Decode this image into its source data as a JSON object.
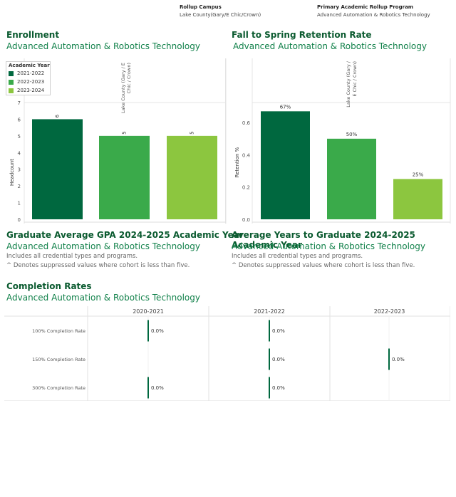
{
  "filters": {
    "campus_label": "Rollup Campus",
    "campus_value": "Lake County(Gary/E Chic/Crown)",
    "program_label": "Primary Academic Rollup Program",
    "program_value": "Advanced Automation & Robotics Technology"
  },
  "colors": {
    "y2021": "#00683f",
    "y2022": "#3aaa4a",
    "y2023": "#8cc63f",
    "title": "#0a5a2f",
    "subtitle": "#11814a"
  },
  "enrollment": {
    "title": "Enrollment",
    "subtitle": "Advanced Automation & Robotics Technology",
    "legend_title": "Academic Year",
    "legend_items": [
      "2021-2022",
      "2022-2023",
      "2023-2024"
    ],
    "campus_header": "Lake County (Gary / E Chic / Crown)"
  },
  "retention": {
    "title": "Fall to Spring Retention Rate",
    "subtitle": "Advanced Automation & Robotics Technology",
    "campus_header": "Lake County (Gary / E Chic / Crown)"
  },
  "gpa": {
    "title": "Graduate Average GPA 2024-2025 Academic Year",
    "subtitle": "Advanced Automation & Robotics Technology",
    "note1": "Includes all credential types and programs.",
    "note2": "^ Denotes suppressed values where cohort is less than five."
  },
  "years_grad": {
    "title": "Average Years to Graduate 2024-2025 Academic Year",
    "subtitle": "Advanced Automation & Robotics Technology",
    "note1": "Includes all credential types and programs.",
    "note2": "^ Denotes suppressed values where cohort is less than five."
  },
  "completion": {
    "title": "Completion Rates",
    "subtitle": "Advanced Automation & Robotics Technology"
  },
  "chart_data": [
    {
      "type": "bar",
      "title": "Enrollment",
      "ylabel": "Headcount",
      "categories": [
        "2021-2022",
        "2022-2023",
        "2023-2024"
      ],
      "values": [
        6,
        5,
        5
      ],
      "data_labels": [
        "6",
        "5",
        "5"
      ],
      "ylim": [
        0,
        7
      ],
      "yticks": [
        0,
        1,
        2,
        3,
        4,
        5,
        6,
        7
      ],
      "grid": false
    },
    {
      "type": "bar",
      "title": "Fall to Spring Retention Rate",
      "ylabel": "Retention %",
      "categories": [
        "2021-2022",
        "2022-2023",
        "2023-2024"
      ],
      "values": [
        0.67,
        0.5,
        0.25
      ],
      "data_labels": [
        "67%",
        "50%",
        "25%"
      ],
      "ylim": [
        0,
        0.72
      ],
      "yticks": [
        0.0,
        0.2,
        0.4,
        0.6
      ],
      "ytick_labels": [
        "0.0",
        "0.2",
        "0.4",
        "0.6"
      ],
      "grid": false
    },
    {
      "type": "bar",
      "title": "Completion Rates",
      "columns": [
        "2020-2021",
        "2021-2022",
        "2022-2023"
      ],
      "rows": [
        "100% Completion Rate",
        "150% Completion Rate",
        "300% Completion Rate"
      ],
      "values": [
        [
          0.0,
          0.0,
          null
        ],
        [
          null,
          0.0,
          0.0
        ],
        [
          0.0,
          0.0,
          null
        ]
      ],
      "data_labels": [
        [
          "0.0%",
          "0.0%",
          ""
        ],
        [
          "",
          "0.0%",
          "0.0%"
        ],
        [
          "0.0%",
          "0.0%",
          ""
        ]
      ]
    }
  ]
}
